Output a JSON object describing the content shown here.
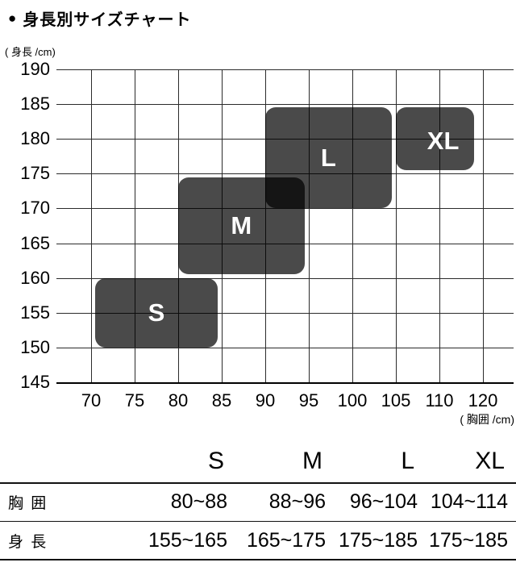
{
  "title": {
    "bullet": "●",
    "text": "身長別サイズチャート"
  },
  "chart_data": {
    "type": "area",
    "description": "size regions (rounded rectangles) plotted on chest-girth vs body-height grid",
    "title": "身長別サイズチャート",
    "xlabel": "( 胸囲 /cm)",
    "ylabel": "( 身長 /cm)",
    "x_ticks": [
      "70",
      "75",
      "80",
      "85",
      "90",
      "95",
      "100",
      "105",
      "110",
      "120"
    ],
    "y_ticks": [
      "190",
      "185",
      "180",
      "175",
      "170",
      "165",
      "160",
      "155",
      "150",
      "145"
    ],
    "grid": true,
    "region_color": "rgba(0,0,0,0.71)",
    "region_label_color": "#ffffff",
    "regions": [
      {
        "label": "S",
        "chest_range": [
          70.5,
          84.5
        ],
        "height_range": [
          150,
          160
        ]
      },
      {
        "label": "M",
        "chest_range": [
          80,
          94.5
        ],
        "height_range": [
          160.5,
          174.5
        ]
      },
      {
        "label": "L",
        "chest_range": [
          90,
          104.5
        ],
        "height_range": [
          170,
          184.5
        ]
      },
      {
        "label": "XL",
        "chest_range": [
          105,
          114
        ],
        "height_range": [
          175.5,
          184.5
        ],
        "label_offset": [
          10,
          2
        ]
      }
    ]
  },
  "size_table": {
    "headers": [
      "S",
      "M",
      "L",
      "XL"
    ],
    "rows": [
      {
        "label": "胸 囲",
        "values": [
          "80~88",
          "88~96",
          "96~104",
          "104~114"
        ]
      },
      {
        "label": "身 長",
        "values": [
          "155~165",
          "165~175",
          "175~185",
          "175~185"
        ]
      }
    ]
  }
}
